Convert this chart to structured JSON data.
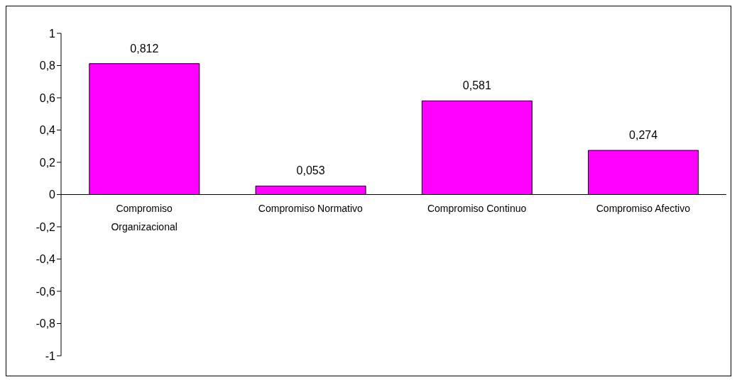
{
  "chart_data": {
    "type": "bar",
    "categories": [
      "Compromiso Organizacional",
      "Compromiso Normativo",
      "Compromiso Continuo",
      "Compromiso Afectivo"
    ],
    "values": [
      0.812,
      0.053,
      0.581,
      0.274
    ],
    "value_labels": [
      "0,812",
      "0,053",
      "0,581",
      "0,274"
    ],
    "color": "#ff00ff",
    "ylim": [
      -1,
      1
    ],
    "yticks": [
      {
        "value": -1,
        "label": "-1"
      },
      {
        "value": -0.8,
        "label": "-0,8"
      },
      {
        "value": -0.6,
        "label": "-0,6"
      },
      {
        "value": -0.4,
        "label": "-0,4"
      },
      {
        "value": -0.2,
        "label": "-0,2"
      },
      {
        "value": 0,
        "label": "0"
      },
      {
        "value": 0.2,
        "label": "0,2"
      },
      {
        "value": 0.4,
        "label": "0,4"
      },
      {
        "value": 0.6,
        "label": "0,6"
      },
      {
        "value": 0.8,
        "label": "0,8"
      },
      {
        "value": 1,
        "label": "1"
      }
    ],
    "grid": false,
    "legend": false
  }
}
